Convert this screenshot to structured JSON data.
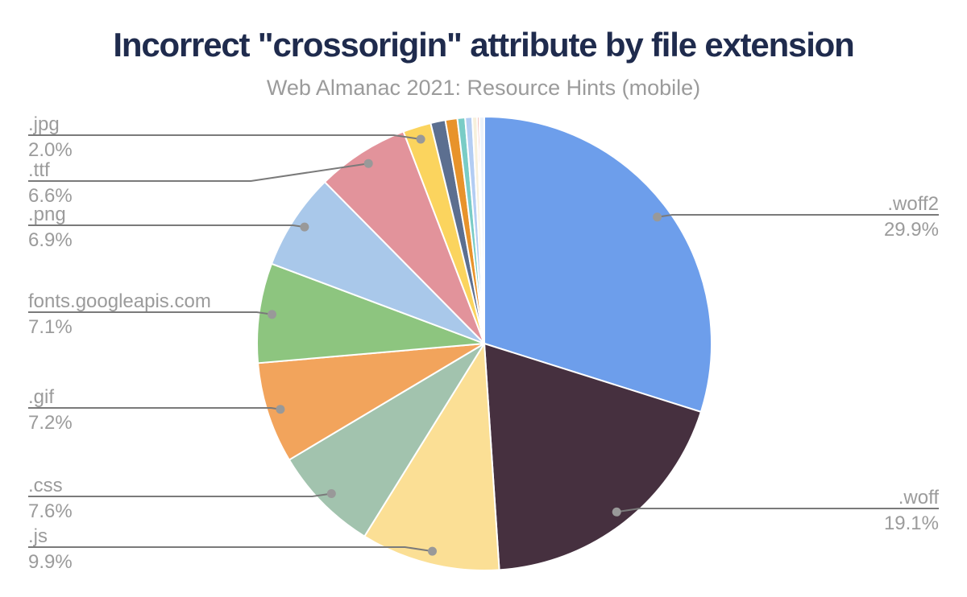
{
  "title": "Incorrect \"crossorigin\" attribute by file extension",
  "subtitle": "Web Almanac 2021: Resource Hints (mobile)",
  "palette": {
    "background": "#ffffff",
    "title_text": "#1f2b4d",
    "subtitle_text": "#9b9b9b",
    "label_text": "#9b9b9b",
    "leader_line": "#7a7a7a",
    "leader_dot": "#999999",
    "slice_gap": "#ffffff"
  },
  "chart_data": {
    "type": "pie",
    "title": "Incorrect \"crossorigin\" attribute by file extension",
    "subtitle": "Web Almanac 2021: Resource Hints (mobile)",
    "start_angle_deg": 0,
    "direction": "clockwise",
    "legend_position": "none",
    "labels_style": "callout-leader-lines",
    "slices": [
      {
        "label": ".woff2",
        "value": 29.9,
        "pct_label": "29.9%",
        "color": "#6d9eeb",
        "label_side": "right"
      },
      {
        "label": ".woff",
        "value": 19.1,
        "pct_label": "19.1%",
        "color": "#46303f",
        "label_side": "right"
      },
      {
        "label": ".js",
        "value": 9.9,
        "pct_label": "9.9%",
        "color": "#fbdf95",
        "label_side": "left"
      },
      {
        "label": ".css",
        "value": 7.6,
        "pct_label": "7.6%",
        "color": "#a2c3ae",
        "label_side": "left"
      },
      {
        "label": ".gif",
        "value": 7.2,
        "pct_label": "7.2%",
        "color": "#f2a45c",
        "label_side": "left"
      },
      {
        "label": "fonts.googleapis.com",
        "value": 7.1,
        "pct_label": "7.1%",
        "color": "#8dc57f",
        "label_side": "left"
      },
      {
        "label": ".png",
        "value": 6.9,
        "pct_label": "6.9%",
        "color": "#a9c8ea",
        "label_side": "left"
      },
      {
        "label": ".ttf",
        "value": 6.6,
        "pct_label": "6.6%",
        "color": "#e2939b",
        "label_side": "left"
      },
      {
        "label": ".jpg",
        "value": 2.0,
        "pct_label": "2.0%",
        "color": "#fbd45e",
        "label_side": "left"
      },
      {
        "label": "",
        "value": 1.05,
        "pct_label": "",
        "color": "#5c6f90",
        "label_side": "none"
      },
      {
        "label": "",
        "value": 0.85,
        "pct_label": "",
        "color": "#e8932b",
        "label_side": "none"
      },
      {
        "label": "",
        "value": 0.55,
        "pct_label": "",
        "color": "#79ccc6",
        "label_side": "none"
      },
      {
        "label": "",
        "value": 0.5,
        "pct_label": "",
        "color": "#b3cdf3",
        "label_side": "none"
      },
      {
        "label": "",
        "value": 0.35,
        "pct_label": "",
        "color": "#f7f0dc",
        "label_side": "none"
      },
      {
        "label": "",
        "value": 0.15,
        "pct_label": "",
        "color": "#e8968e",
        "label_side": "none"
      },
      {
        "label": "",
        "value": 0.35,
        "pct_label": "",
        "color": "#edf3fa",
        "label_side": "none"
      }
    ]
  }
}
